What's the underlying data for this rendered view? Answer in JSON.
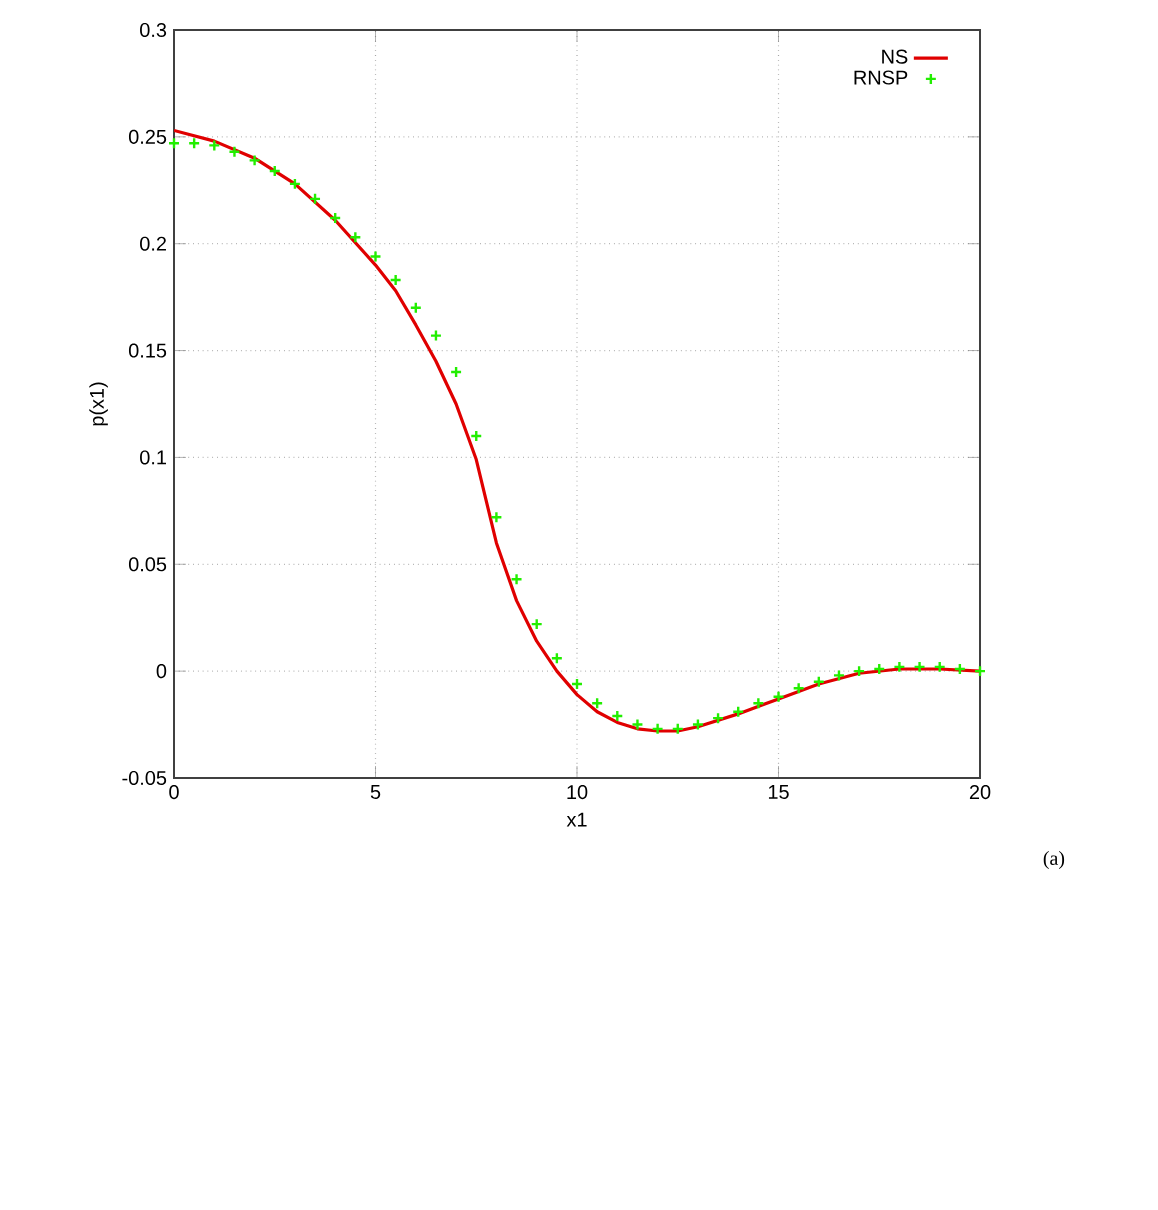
{
  "chart_data": {
    "type": "line",
    "xlabel": "x1",
    "ylabel": "p(x1)",
    "xlim": [
      0,
      20
    ],
    "ylim": [
      -0.05,
      0.3
    ],
    "xticks": [
      0,
      5,
      10,
      15,
      20
    ],
    "yticks": [
      -0.05,
      0,
      0.05,
      0.1,
      0.15,
      0.2,
      0.25,
      0.3
    ],
    "grid": true,
    "legend": "top right",
    "annotations": [
      "(a)"
    ],
    "series": [
      {
        "name": "NS",
        "color": "#e00000",
        "marker": "none",
        "x": [
          0,
          1,
          2,
          3,
          4,
          5,
          5.5,
          6,
          6.5,
          7,
          7.5,
          8,
          8.5,
          9,
          9.5,
          10,
          10.5,
          11,
          11.5,
          12,
          12.5,
          13,
          14,
          15,
          16,
          17,
          18,
          19,
          20
        ],
        "values": [
          0.253,
          0.248,
          0.24,
          0.228,
          0.211,
          0.19,
          0.178,
          0.162,
          0.145,
          0.125,
          0.099,
          0.06,
          0.033,
          0.014,
          0.0,
          -0.011,
          -0.019,
          -0.024,
          -0.027,
          -0.028,
          -0.028,
          -0.026,
          -0.02,
          -0.013,
          -0.006,
          -0.001,
          0.001,
          0.001,
          0.0
        ]
      },
      {
        "name": "RNSP",
        "color": "#22ee00",
        "type": "scatter",
        "marker": "cross",
        "x": [
          0,
          0.5,
          1,
          1.5,
          2,
          2.5,
          3,
          3.5,
          4,
          4.5,
          5,
          5.5,
          6,
          6.5,
          7,
          7.5,
          8,
          8.5,
          9,
          9.5,
          10,
          10.5,
          11,
          11.5,
          12,
          12.5,
          13,
          13.5,
          14,
          14.5,
          15,
          15.5,
          16,
          16.5,
          17,
          17.5,
          18,
          18.5,
          19,
          19.5,
          20
        ],
        "values": [
          0.247,
          0.247,
          0.246,
          0.243,
          0.239,
          0.234,
          0.228,
          0.221,
          0.212,
          0.203,
          0.194,
          0.183,
          0.17,
          0.157,
          0.14,
          0.11,
          0.072,
          0.043,
          0.022,
          0.006,
          -0.006,
          -0.015,
          -0.021,
          -0.025,
          -0.027,
          -0.027,
          -0.025,
          -0.022,
          -0.019,
          -0.015,
          -0.012,
          -0.008,
          -0.005,
          -0.002,
          0.0,
          0.001,
          0.002,
          0.002,
          0.002,
          0.001,
          0.0
        ]
      }
    ]
  }
}
